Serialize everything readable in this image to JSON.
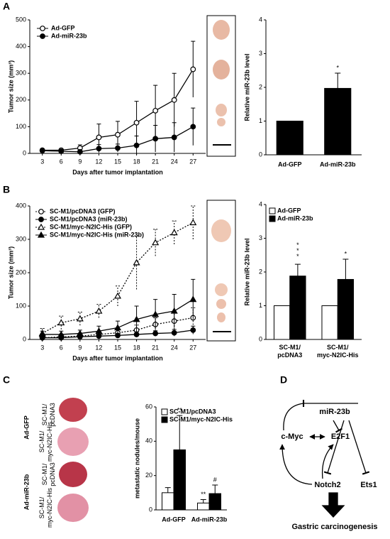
{
  "panels": [
    "A",
    "B",
    "C",
    "D"
  ],
  "chart_data": [
    {
      "type": "line",
      "xlabel": "Days after tumor implantation",
      "ylabel": "Tumor size (mm³)",
      "x": [
        3,
        6,
        9,
        12,
        15,
        18,
        21,
        24,
        27
      ],
      "xlim": [
        1,
        29
      ],
      "xticks": [
        3,
        6,
        9,
        12,
        15,
        18,
        21,
        24,
        27
      ],
      "ylim": [
        0,
        500
      ],
      "yticks": [
        0,
        100,
        200,
        300,
        400,
        500
      ],
      "series": [
        {
          "name": "Ad-GFP",
          "color": "#000000",
          "marker": "circle",
          "filled": false,
          "linestyle": "solid",
          "values": [
            12,
            12,
            20,
            60,
            70,
            115,
            160,
            200,
            315
          ],
          "errors": [
            5,
            5,
            12,
            50,
            50,
            80,
            95,
            100,
            105
          ]
        },
        {
          "name": "Ad-miR-23b",
          "color": "#000000",
          "marker": "circle",
          "filled": true,
          "linestyle": "solid",
          "values": [
            10,
            8,
            6,
            18,
            20,
            30,
            55,
            60,
            100
          ],
          "errors": [
            5,
            5,
            8,
            15,
            15,
            35,
            50,
            55,
            70
          ]
        }
      ]
    },
    {
      "type": "bar",
      "ylabel": "Relative miR-23b level",
      "categories": [
        "Ad-GFP",
        "Ad-miR-23b"
      ],
      "values": [
        1,
        1.97
      ],
      "errors": [
        0,
        0.45
      ],
      "color": "#000000",
      "ylim": [
        0,
        4
      ],
      "yticks": [
        0,
        1,
        2,
        3,
        4
      ],
      "annotations": [
        "*"
      ]
    },
    {
      "type": "line",
      "xlabel": "Days after tumor implantation",
      "ylabel": "Tumor size (mm³)",
      "x": [
        3,
        6,
        9,
        12,
        15,
        18,
        21,
        24,
        27
      ],
      "xlim": [
        1,
        29
      ],
      "xticks": [
        3,
        6,
        9,
        12,
        15,
        18,
        21,
        24,
        27
      ],
      "ylim": [
        0,
        400
      ],
      "yticks": [
        0,
        100,
        200,
        300,
        400
      ],
      "series": [
        {
          "name": "SC-M1/pcDNA3 (GFP)",
          "color": "#000000",
          "marker": "circle",
          "filled": false,
          "linestyle": "dotted",
          "values": [
            5,
            8,
            10,
            15,
            20,
            28,
            45,
            55,
            65
          ],
          "errors": [
            3,
            4,
            5,
            8,
            10,
            15,
            20,
            25,
            30
          ]
        },
        {
          "name": "SC-M1/pcDNA3 (miR-23b)",
          "color": "#000000",
          "marker": "circle",
          "filled": true,
          "linestyle": "solid",
          "values": [
            5,
            5,
            8,
            10,
            12,
            15,
            18,
            20,
            28
          ],
          "errors": [
            3,
            3,
            4,
            5,
            5,
            8,
            8,
            10,
            12
          ]
        },
        {
          "name": "SC-M1/myc-N2IC-His (GFP)",
          "color": "#000000",
          "marker": "triangle",
          "filled": false,
          "linestyle": "dotted",
          "values": [
            18,
            50,
            62,
            85,
            130,
            230,
            290,
            320,
            350
          ],
          "errors": [
            15,
            20,
            20,
            20,
            30,
            80,
            40,
            35,
            50
          ]
        },
        {
          "name": "SC-M1/myc-N2IC-His (miR-23b)",
          "color": "#000000",
          "marker": "triangle",
          "filled": true,
          "linestyle": "solid",
          "values": [
            15,
            15,
            18,
            25,
            35,
            60,
            75,
            85,
            120
          ],
          "errors": [
            10,
            10,
            10,
            15,
            20,
            40,
            45,
            50,
            60
          ]
        }
      ]
    },
    {
      "type": "bar",
      "ylabel": "Relative miR-23b level",
      "categories": [
        "SC-M1/\npcDNA3",
        "SC-M1/\nmyc-N2IC-His"
      ],
      "ylim": [
        0,
        4
      ],
      "yticks": [
        0,
        1,
        2,
        3,
        4
      ],
      "series": [
        {
          "name": "Ad-GFP",
          "color": "#ffffff",
          "values": [
            1,
            1
          ],
          "errors": [
            0,
            0
          ]
        },
        {
          "name": "Ad-miR-23b",
          "color": "#000000",
          "values": [
            1.88,
            1.78
          ],
          "errors": [
            0.35,
            0.6
          ]
        }
      ],
      "annotations": [
        "***",
        "*"
      ]
    },
    {
      "type": "bar",
      "ylabel": "metastatic nodules/mouse",
      "categories": [
        "Ad-GFP",
        "Ad-miR-23b"
      ],
      "ylim": [
        0,
        60
      ],
      "yticks": [
        0,
        20,
        40,
        60
      ],
      "series": [
        {
          "name": "SC-M1/pcDNA3",
          "color": "#ffffff",
          "values": [
            10,
            4
          ],
          "errors": [
            3,
            2
          ]
        },
        {
          "name": "SC-M1/myc-N2IC-His",
          "color": "#000000",
          "values": [
            35,
            9.5
          ],
          "errors": [
            20,
            5
          ]
        }
      ],
      "annotations": [
        "**",
        "**",
        "#"
      ]
    }
  ],
  "photos": {
    "rows": [
      "Ad-GFP",
      "Ad-miR-23b"
    ],
    "cols": [
      "SC-M1/\npcDNA3",
      "SC-M1/\nmyc-N2IC-His"
    ]
  },
  "diagram": {
    "nodes": [
      "miR-23b",
      "c-Myc",
      "E2F1",
      "Notch2",
      "Ets1",
      "Gastric carcinogenesis"
    ]
  }
}
